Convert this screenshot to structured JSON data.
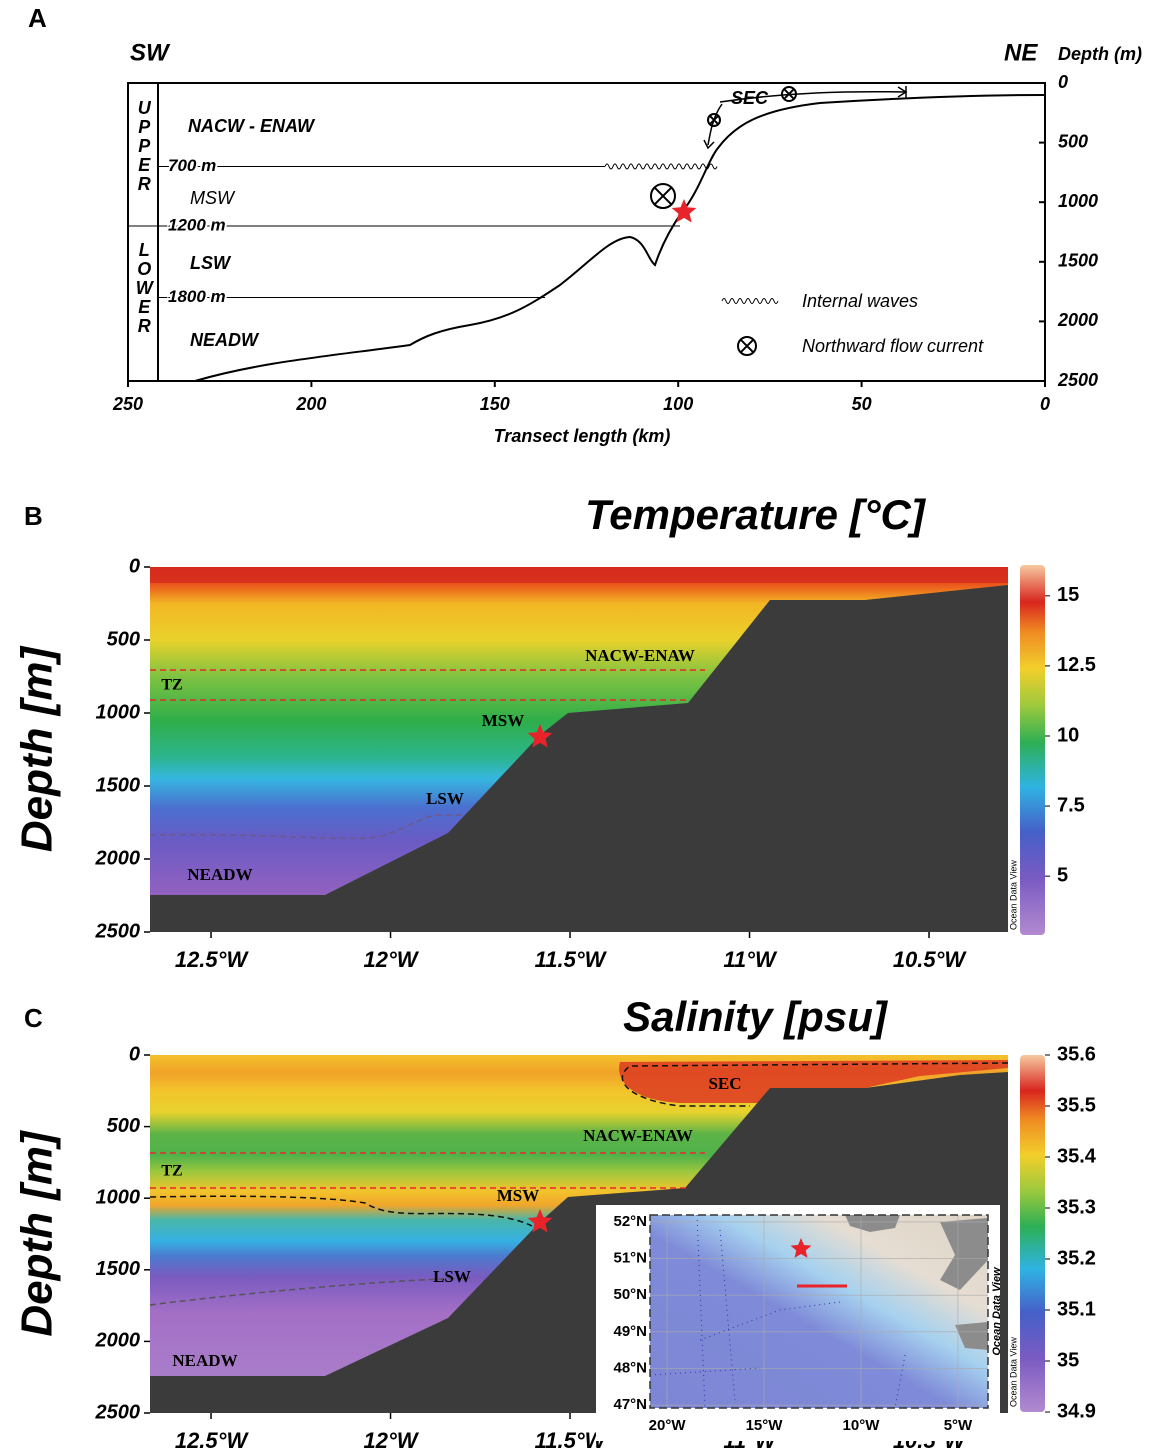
{
  "chart_data": [
    {
      "type": "schematic",
      "panel_label": "A",
      "left_label": "SW",
      "right_label": "NE",
      "ylabel": "Depth (m)",
      "xlabel": "Transect length (km)",
      "xlim": [
        250,
        0
      ],
      "xticks": [
        250,
        200,
        150,
        100,
        50,
        0
      ],
      "ylim": [
        2500,
        0
      ],
      "yticks": [
        0,
        500,
        1000,
        1500,
        2000,
        2500
      ],
      "groups": [
        "UPPER",
        "LOWER"
      ],
      "boundaries": [
        {
          "value": 700,
          "label": "700 m"
        },
        {
          "value": 1200,
          "label": "1200 m"
        },
        {
          "value": 1800,
          "label": "1800 m"
        }
      ],
      "water_masses": [
        "NACW - ENAW",
        "MSW",
        "LSW",
        "NEADW"
      ],
      "current_label": "SEC",
      "legend": [
        "Internal waves",
        "Northward flow current"
      ]
    },
    {
      "type": "section",
      "panel_label": "B",
      "title": "Temperature [°C]",
      "ylabel": "Depth [m]",
      "xlim": [
        -12.67,
        -10.28
      ],
      "xticks": [
        {
          "value": -12.5,
          "label": "12.5°W"
        },
        {
          "value": -12,
          "label": "12°W"
        },
        {
          "value": -11.5,
          "label": "11.5°W"
        },
        {
          "value": -11,
          "label": "11°W"
        },
        {
          "value": -10.5,
          "label": "10.5°W"
        }
      ],
      "ylim": [
        2500,
        0
      ],
      "yticks": [
        0,
        500,
        1000,
        1500,
        2000,
        2500
      ],
      "colorbar_lim": [
        2.9,
        16.1
      ],
      "colorbar_ticks": [
        5,
        7.5,
        10,
        12.5,
        15
      ],
      "zone_label": "TZ",
      "water_masses": [
        "NACW-ENAW",
        "MSW",
        "LSW",
        "NEADW"
      ],
      "watermark": "Ocean Data View"
    },
    {
      "type": "section",
      "panel_label": "C",
      "title": "Salinity [psu]",
      "ylabel": "Depth [m]",
      "xlim": [
        -12.67,
        -10.28
      ],
      "xticks": [
        {
          "value": -12.5,
          "label": "12.5°W"
        },
        {
          "value": -12,
          "label": "12°W"
        },
        {
          "value": -11.5,
          "label": "11.5°W"
        },
        {
          "value": -11,
          "label": "11°W"
        },
        {
          "value": -10.5,
          "label": "10.5°W"
        }
      ],
      "ylim": [
        2500,
        0
      ],
      "yticks": [
        0,
        500,
        1000,
        1500,
        2000,
        2500
      ],
      "colorbar_lim": [
        34.9,
        35.6
      ],
      "colorbar_ticks": [
        34.9,
        35,
        35.1,
        35.2,
        35.3,
        35.4,
        35.5,
        35.6
      ],
      "zone_label": "TZ",
      "water_masses": [
        "SEC",
        "NACW-ENAW",
        "MSW",
        "LSW",
        "NEADW"
      ],
      "watermark": "Ocean Data View",
      "inset": {
        "xlim": [
          -20.88,
          -3.45
        ],
        "xticks": [
          {
            "value": -20,
            "label": "20°W"
          },
          {
            "value": -15,
            "label": "15°W"
          },
          {
            "value": -10,
            "label": "10°W"
          },
          {
            "value": -5,
            "label": "5°W"
          }
        ],
        "ylim": [
          46.92,
          52.19
        ],
        "yticks": [
          {
            "value": 47,
            "label": "47°N"
          },
          {
            "value": 48,
            "label": "48°N"
          },
          {
            "value": 49,
            "label": "49°N"
          },
          {
            "value": 50,
            "label": "50°N"
          },
          {
            "value": 51,
            "label": "51°N"
          },
          {
            "value": 52,
            "label": "52°N"
          }
        ],
        "watermark": "Ocean Data View"
      }
    }
  ]
}
